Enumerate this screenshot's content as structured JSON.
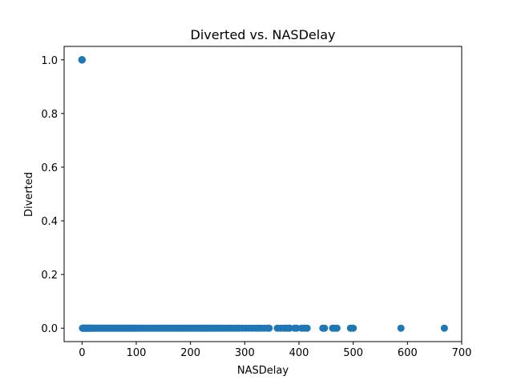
{
  "chart_data": {
    "type": "scatter",
    "title": "Diverted vs. NASDelay",
    "xlabel": "NASDelay",
    "ylabel": "Diverted",
    "xlim": [
      -33,
      700
    ],
    "ylim": [
      -0.05,
      1.05
    ],
    "xticks": [
      0,
      100,
      200,
      300,
      400,
      500,
      600,
      700
    ],
    "yticks": [
      0.0,
      0.2,
      0.4,
      0.6,
      0.8,
      1.0
    ],
    "xtick_labels": [
      "0",
      "100",
      "200",
      "300",
      "400",
      "500",
      "600",
      "700"
    ],
    "ytick_labels": [
      "0.0",
      "0.2",
      "0.4",
      "0.6",
      "0.8",
      "1.0"
    ],
    "grid": false,
    "marker_color": "#1f77b4",
    "series": [
      {
        "x": [
          0,
          0,
          0,
          0,
          0,
          0,
          0,
          0,
          0,
          0,
          1,
          1,
          2,
          2,
          3,
          4,
          5,
          6,
          7,
          8,
          9,
          10,
          11,
          12,
          13,
          14,
          15,
          16,
          17,
          18,
          19,
          20,
          22,
          24,
          26,
          28,
          30,
          32,
          34,
          36,
          38,
          40,
          42,
          44,
          46,
          48,
          50,
          52,
          54,
          56,
          58,
          60,
          62,
          64,
          66,
          68,
          70,
          72,
          74,
          76,
          78,
          80,
          82,
          84,
          86,
          88,
          90,
          92,
          94,
          96,
          98,
          100,
          103,
          106,
          109,
          112,
          115,
          118,
          121,
          124,
          127,
          130,
          133,
          136,
          139,
          142,
          145,
          148,
          151,
          154,
          157,
          160,
          163,
          166,
          169,
          172,
          175,
          178,
          181,
          184,
          187,
          190,
          193,
          196,
          199,
          202,
          205,
          208,
          211,
          214,
          217,
          220,
          223,
          226,
          229,
          232,
          235,
          238,
          241,
          244,
          247,
          250,
          254,
          258,
          262,
          266,
          270,
          275,
          280,
          285,
          290,
          296,
          302,
          308,
          314,
          320,
          325,
          330,
          336,
          342,
          345,
          360,
          366,
          372,
          376,
          380,
          383,
          392,
          396,
          405,
          410,
          415,
          444,
          447,
          462,
          466,
          470,
          495,
          500,
          588,
          668
        ],
        "y": [
          1,
          1,
          1,
          1,
          1,
          1,
          1,
          1,
          1,
          1,
          0,
          0,
          0,
          0,
          0,
          0,
          0,
          0,
          0,
          0,
          0,
          0,
          0,
          0,
          0,
          0,
          0,
          0,
          0,
          0,
          0,
          0,
          0,
          0,
          0,
          0,
          0,
          0,
          0,
          0,
          0,
          0,
          0,
          0,
          0,
          0,
          0,
          0,
          0,
          0,
          0,
          0,
          0,
          0,
          0,
          0,
          0,
          0,
          0,
          0,
          0,
          0,
          0,
          0,
          0,
          0,
          0,
          0,
          0,
          0,
          0,
          0,
          0,
          0,
          0,
          0,
          0,
          0,
          0,
          0,
          0,
          0,
          0,
          0,
          0,
          0,
          0,
          0,
          0,
          0,
          0,
          0,
          0,
          0,
          0,
          0,
          0,
          0,
          0,
          0,
          0,
          0,
          0,
          0,
          0,
          0,
          0,
          0,
          0,
          0,
          0,
          0,
          0,
          0,
          0,
          0,
          0,
          0,
          0,
          0,
          0,
          0,
          0,
          0,
          0,
          0,
          0,
          0,
          0,
          0,
          0,
          0,
          0,
          0,
          0,
          0,
          0,
          0,
          0,
          0,
          0,
          0,
          0,
          0,
          0,
          0,
          0,
          0,
          0,
          0,
          0,
          0,
          0,
          0,
          0,
          0,
          0,
          0,
          0,
          0,
          0
        ]
      }
    ]
  }
}
